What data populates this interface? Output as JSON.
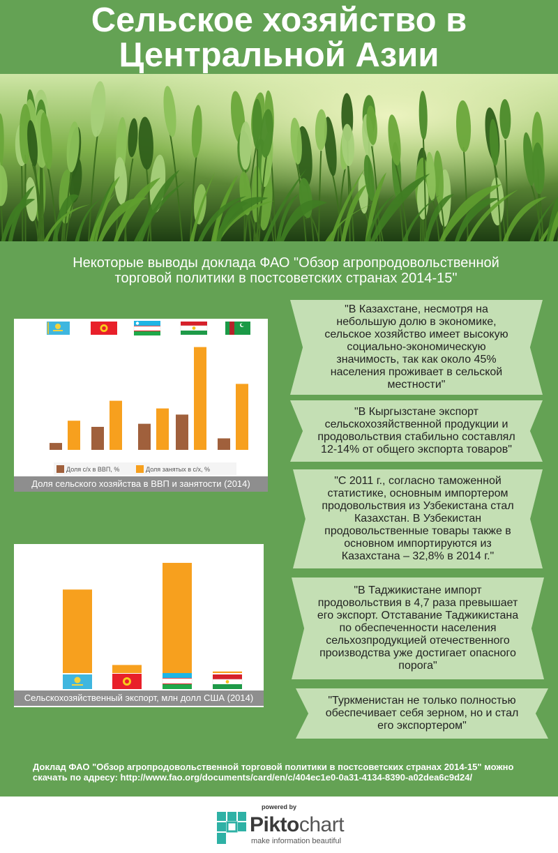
{
  "header": {
    "title_line1": "Сельское хозяйство в",
    "title_line2": "Центральной Азии"
  },
  "subtitle": {
    "line1": "Некоторые выводы доклада ФАО \"Обзор агропродовольственной",
    "line2": "торговой политики в постсоветских странах 2014-15\""
  },
  "colors": {
    "background": "#64a254",
    "gdp": "#a0603c",
    "employment": "#f7a01e",
    "quote_box": "#c4dfb4"
  },
  "chart_data": [
    {
      "type": "bar",
      "title": "Доля сельского хозяйства в ВВП и занятости (2014)",
      "categories": [
        "Kazakhstan flag",
        "Kyrgyzstan flag",
        "Uzbekistan flag",
        "Tajikistan flag",
        "Turkmenistan flag"
      ],
      "series": [
        {
          "name": "Доля с/х в ВВП, %",
          "values": [
            4.5,
            15,
            17,
            23,
            7.5
          ]
        },
        {
          "name": "Доля занятых в с/х, %",
          "values": [
            19,
            32,
            27,
            67,
            43
          ]
        }
      ],
      "ylim": [
        0,
        75
      ],
      "legend": "bottom",
      "grid": false
    },
    {
      "type": "bar",
      "title": "Сельскохозяйственный экспорт, млн долл США (2014)",
      "categories": [
        "Kazakhstan flag",
        "Kyrgyzstan flag",
        "Uzbekistan flag",
        "Tajikistan flag"
      ],
      "values": [
        2380,
        230,
        3140,
        45
      ],
      "ylim": [
        0,
        3200
      ],
      "legend": "none",
      "grid": false
    }
  ],
  "quotes": [
    {
      "lines": [
        "\"В Казахстане, несмотря на",
        "небольшую долю в экономике,",
        "сельское хозяйство имеет высокую",
        "социально-экономическую",
        "значимость, так как около 45%",
        "населения проживает в сельской",
        "местности\""
      ]
    },
    {
      "lines": [
        "\"В Кыргызстане экспорт",
        "сельскохозяйственной продукции и",
        "продовольствия стабильно составлял",
        "12-14% от общего экспорта товаров\""
      ]
    },
    {
      "lines": [
        "\"С 2011 г., согласно таможенной",
        "статистике, основным импортером",
        "продовольствия из Узбекистана стал",
        "Казахстан. В Узбекистан",
        "продовольственные товары также в",
        "основном импортируются из",
        "Казахстана – 32,8% в 2014 г.\""
      ]
    },
    {
      "lines": [
        "\"В Таджикистане импорт",
        "продовольствия в 4,7 раза превышает",
        "его экспорт.  Отставание Таджикистана",
        "по обеспеченности населения",
        "сельхозпродукцией отечественного",
        "производства уже достигает опасного",
        "порога\""
      ]
    },
    {
      "lines": [
        "\"Туркменистан не только полностью",
        "обеспечивает себя зерном, но и стал",
        "его экспортером\""
      ]
    }
  ],
  "source": {
    "line1": "Доклад ФАО \"Обзор агропродовольственной торговой политики в постсоветских странах 2014-15\" можно",
    "line2": "скачать по адресу: http://www.fao.org/documents/card/en/c/404ec1e0-0a31-4134-8390-a02dea6c9d24/"
  },
  "footer": {
    "powered_by": "powered by",
    "brand_bold": "Pikto",
    "brand_light": "chart",
    "tagline": "make information beautiful"
  }
}
